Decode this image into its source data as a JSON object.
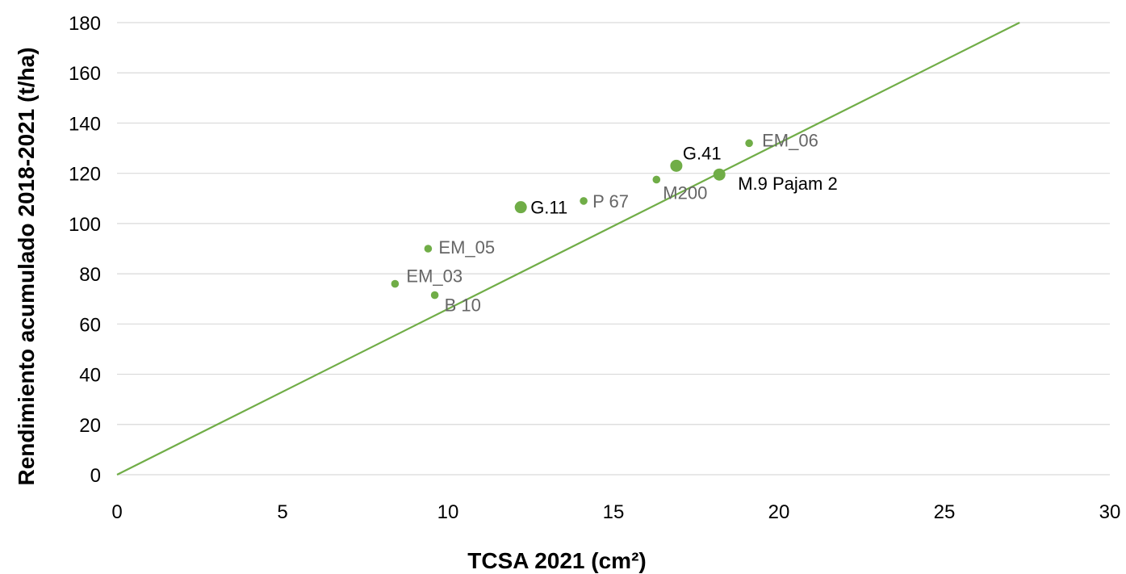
{
  "chart_data": {
    "type": "scatter",
    "xlabel": "TCSA 2021 (cm²)",
    "ylabel": "Rendimiento acumulado 2018-2021 (t/ha)",
    "xlim": [
      0,
      30
    ],
    "ylim": [
      0,
      180
    ],
    "x_ticks": [
      "0",
      "5",
      "10",
      "15",
      "20",
      "25",
      "30"
    ],
    "y_ticks": [
      "0",
      "20",
      "40",
      "60",
      "80",
      "100",
      "120",
      "140",
      "160",
      "180"
    ],
    "grid": "horizontal",
    "colors": {
      "series": "#70ad47",
      "label_dark": "#000000",
      "label_muted": "#666666",
      "grid": "#d9d9d9"
    },
    "points": [
      {
        "label": "EM_03",
        "x": 8.4,
        "y": 76,
        "emphasis": false
      },
      {
        "label": "B 10",
        "x": 9.6,
        "y": 71.5,
        "emphasis": false
      },
      {
        "label": "EM_05",
        "x": 9.4,
        "y": 90,
        "emphasis": false
      },
      {
        "label": "G.11",
        "x": 12.2,
        "y": 106.5,
        "emphasis": true
      },
      {
        "label": "P 67",
        "x": 14.1,
        "y": 109,
        "emphasis": false
      },
      {
        "label": "M200",
        "x": 16.3,
        "y": 117.5,
        "emphasis": false
      },
      {
        "label": "G.41",
        "x": 16.9,
        "y": 123,
        "emphasis": true
      },
      {
        "label": "M.9 Pajam 2",
        "x": 18.2,
        "y": 119.5,
        "emphasis": true
      },
      {
        "label": "EM_06",
        "x": 19.1,
        "y": 132,
        "emphasis": false
      }
    ],
    "trendline": {
      "type": "linear",
      "intercept": 0,
      "slope": 6.6
    }
  }
}
